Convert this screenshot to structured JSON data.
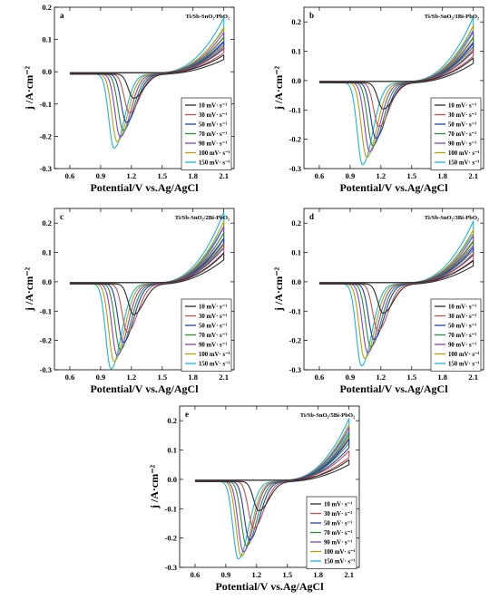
{
  "chart_data": [
    {
      "type": "line",
      "panel_label": "a",
      "title": "Ti/Sb-SnO₂/PbO₂",
      "xlabel": "Potential/V vs.Ag/AgCl",
      "ylabel": "j /A·cm⁻²",
      "xlim": [
        0.45,
        2.2
      ],
      "ylim": [
        -0.3,
        0.2
      ],
      "xticks": [
        "0.6",
        "0.9",
        "1.2",
        "1.5",
        "1.8",
        "2.1"
      ],
      "yticks": [
        "-0.3",
        "-0.2",
        "-0.1",
        "0.0",
        "0.1",
        "0.2"
      ],
      "legend_position": "right",
      "series": [
        {
          "name": "10 mV· s⁻¹",
          "color": "#2b2b2b",
          "peak_potential": 1.22,
          "peak_current": -0.075,
          "max_current": 0.055
        },
        {
          "name": "30 mV· s⁻¹",
          "color": "#c0504d",
          "peak_potential": 1.18,
          "peak_current": -0.12,
          "max_current": 0.08
        },
        {
          "name": "50 mV· s⁻¹",
          "color": "#1f3ea8",
          "peak_potential": 1.15,
          "peak_current": -0.15,
          "max_current": 0.095
        },
        {
          "name": "70 mV· s⁻¹",
          "color": "#2e8b3a",
          "peak_potential": 1.12,
          "peak_current": -0.175,
          "max_current": 0.11
        },
        {
          "name": "90 mV· s⁻¹",
          "color": "#8a3fc2",
          "peak_potential": 1.09,
          "peak_current": -0.195,
          "max_current": 0.125
        },
        {
          "name": "100 mV· s⁻¹",
          "color": "#b5a200",
          "peak_potential": 1.06,
          "peak_current": -0.21,
          "max_current": 0.14
        },
        {
          "name": "150 mV· s⁻¹",
          "color": "#1bb5d8",
          "peak_potential": 1.03,
          "peak_current": -0.23,
          "max_current": 0.17
        }
      ]
    },
    {
      "type": "line",
      "panel_label": "b",
      "title": "Ti/Sb-SnO₂/1Bi-PbO₂",
      "xlabel": "Potential/V vs.Ag/AgCl",
      "ylabel": "j /A·cm⁻²",
      "xlim": [
        0.45,
        2.2
      ],
      "ylim": [
        -0.3,
        0.25
      ],
      "xticks": [
        "0.6",
        "0.9",
        "1.2",
        "1.5",
        "1.8",
        "2.1"
      ],
      "yticks": [
        "-0.3",
        "-0.2",
        "-0.1",
        "0.0",
        "0.1",
        "0.2"
      ],
      "legend_position": "right",
      "series": [
        {
          "name": "10 mV· s⁻¹",
          "color": "#2b2b2b",
          "peak_potential": 1.22,
          "peak_current": -0.09,
          "max_current": 0.08
        },
        {
          "name": "30 mV· s⁻¹",
          "color": "#c0504d",
          "peak_potential": 1.18,
          "peak_current": -0.15,
          "max_current": 0.11
        },
        {
          "name": "50 mV· s⁻¹",
          "color": "#1f3ea8",
          "peak_potential": 1.15,
          "peak_current": -0.19,
          "max_current": 0.13
        },
        {
          "name": "70 mV· s⁻¹",
          "color": "#2e8b3a",
          "peak_potential": 1.12,
          "peak_current": -0.215,
          "max_current": 0.15
        },
        {
          "name": "90 mV· s⁻¹",
          "color": "#8a3fc2",
          "peak_potential": 1.09,
          "peak_current": -0.235,
          "max_current": 0.17
        },
        {
          "name": "100 mV· s⁻¹",
          "color": "#b5a200",
          "peak_potential": 1.06,
          "peak_current": -0.255,
          "max_current": 0.19
        },
        {
          "name": "150 mV· s⁻¹",
          "color": "#1bb5d8",
          "peak_potential": 1.02,
          "peak_current": -0.28,
          "max_current": 0.22
        }
      ]
    },
    {
      "type": "line",
      "panel_label": "c",
      "title": "Ti/Sb-SnO₂/2Bi-PbO₂",
      "xlabel": "Potential/V vs.Ag/AgCl",
      "ylabel": "j /A·cm⁻²",
      "xlim": [
        0.45,
        2.2
      ],
      "ylim": [
        -0.3,
        0.25
      ],
      "xticks": [
        "0.6",
        "0.9",
        "1.2",
        "1.5",
        "1.8",
        "2.1"
      ],
      "yticks": [
        "-0.3",
        "-0.2",
        "-0.1",
        "0.0",
        "0.1",
        "0.2"
      ],
      "legend_position": "right",
      "series": [
        {
          "name": "10 mV· s⁻¹",
          "color": "#2b2b2b",
          "peak_potential": 1.22,
          "peak_current": -0.105,
          "max_current": 0.1
        },
        {
          "name": "30 mV· s⁻¹",
          "color": "#c0504d",
          "peak_potential": 1.16,
          "peak_current": -0.165,
          "max_current": 0.13
        },
        {
          "name": "50 mV· s⁻¹",
          "color": "#1f3ea8",
          "peak_potential": 1.12,
          "peak_current": -0.2,
          "max_current": 0.15
        },
        {
          "name": "70 mV· s⁻¹",
          "color": "#2e8b3a",
          "peak_potential": 1.09,
          "peak_current": -0.225,
          "max_current": 0.17
        },
        {
          "name": "90 mV· s⁻¹",
          "color": "#8a3fc2",
          "peak_potential": 1.06,
          "peak_current": -0.245,
          "max_current": 0.19
        },
        {
          "name": "100 mV· s⁻¹",
          "color": "#b5a200",
          "peak_potential": 1.03,
          "peak_current": -0.265,
          "max_current": 0.21
        },
        {
          "name": "150 mV· s⁻¹",
          "color": "#1bb5d8",
          "peak_potential": 1.0,
          "peak_current": -0.29,
          "max_current": 0.24
        }
      ]
    },
    {
      "type": "line",
      "panel_label": "d",
      "title": "Ti/Sb-SnO₂/3Bi-PbO₂",
      "xlabel": "Potential/V vs.Ag/AgCl",
      "ylabel": "j /A·cm⁻²",
      "xlim": [
        0.45,
        2.2
      ],
      "ylim": [
        -0.3,
        0.25
      ],
      "xticks": [
        "0.6",
        "0.9",
        "1.2",
        "1.5",
        "1.8",
        "2.1"
      ],
      "yticks": [
        "-0.3",
        "-0.2",
        "-0.1",
        "0.0",
        "0.1",
        "0.2"
      ],
      "legend_position": "right",
      "series": [
        {
          "name": "10 mV· s⁻¹",
          "color": "#2b2b2b",
          "peak_potential": 1.22,
          "peak_current": -0.1,
          "max_current": 0.075
        },
        {
          "name": "30 mV· s⁻¹",
          "color": "#c0504d",
          "peak_potential": 1.17,
          "peak_current": -0.16,
          "max_current": 0.1
        },
        {
          "name": "50 mV· s⁻¹",
          "color": "#1f3ea8",
          "peak_potential": 1.13,
          "peak_current": -0.19,
          "max_current": 0.12
        },
        {
          "name": "70 mV· s⁻¹",
          "color": "#2e8b3a",
          "peak_potential": 1.1,
          "peak_current": -0.215,
          "max_current": 0.14
        },
        {
          "name": "90 mV· s⁻¹",
          "color": "#8a3fc2",
          "peak_potential": 1.07,
          "peak_current": -0.235,
          "max_current": 0.16
        },
        {
          "name": "100 mV· s⁻¹",
          "color": "#b5a200",
          "peak_potential": 1.04,
          "peak_current": -0.255,
          "max_current": 0.18
        },
        {
          "name": "150 mV· s⁻¹",
          "color": "#1bb5d8",
          "peak_potential": 1.01,
          "peak_current": -0.28,
          "max_current": 0.21
        }
      ]
    },
    {
      "type": "line",
      "panel_label": "e",
      "title": "Ti/Sb-SnO₂/5Bi-PbO₂",
      "xlabel": "Potential/V vs.Ag/AgCl",
      "ylabel": "j /A·cm⁻²",
      "xlim": [
        0.45,
        2.2
      ],
      "ylim": [
        -0.3,
        0.25
      ],
      "xticks": [
        "0.6",
        "0.9",
        "1.2",
        "1.5",
        "1.8",
        "2.1"
      ],
      "yticks": [
        "-0.3",
        "-0.2",
        "-0.1",
        "0.0",
        "0.1",
        "0.2"
      ],
      "legend_position": "right",
      "series": [
        {
          "name": "10 mV· s⁻¹",
          "color": "#2b2b2b",
          "peak_potential": 1.22,
          "peak_current": -0.1,
          "max_current": 0.07
        },
        {
          "name": "30 mV· s⁻¹",
          "color": "#c0504d",
          "peak_potential": 1.17,
          "peak_current": -0.16,
          "max_current": 0.1
        },
        {
          "name": "50 mV· s⁻¹",
          "color": "#1f3ea8",
          "peak_potential": 1.13,
          "peak_current": -0.2,
          "max_current": 0.14
        },
        {
          "name": "70 mV· s⁻¹",
          "color": "#2e8b3a",
          "peak_potential": 1.1,
          "peak_current": -0.22,
          "max_current": 0.16
        },
        {
          "name": "90 mV· s⁻¹",
          "color": "#8a3fc2",
          "peak_potential": 1.07,
          "peak_current": -0.24,
          "max_current": 0.18
        },
        {
          "name": "100 mV· s⁻¹",
          "color": "#b5a200",
          "peak_potential": 1.05,
          "peak_current": -0.255,
          "max_current": 0.19
        },
        {
          "name": "150 mV· s⁻¹",
          "color": "#1bb5d8",
          "peak_potential": 1.02,
          "peak_current": -0.265,
          "max_current": 0.21
        }
      ]
    }
  ]
}
